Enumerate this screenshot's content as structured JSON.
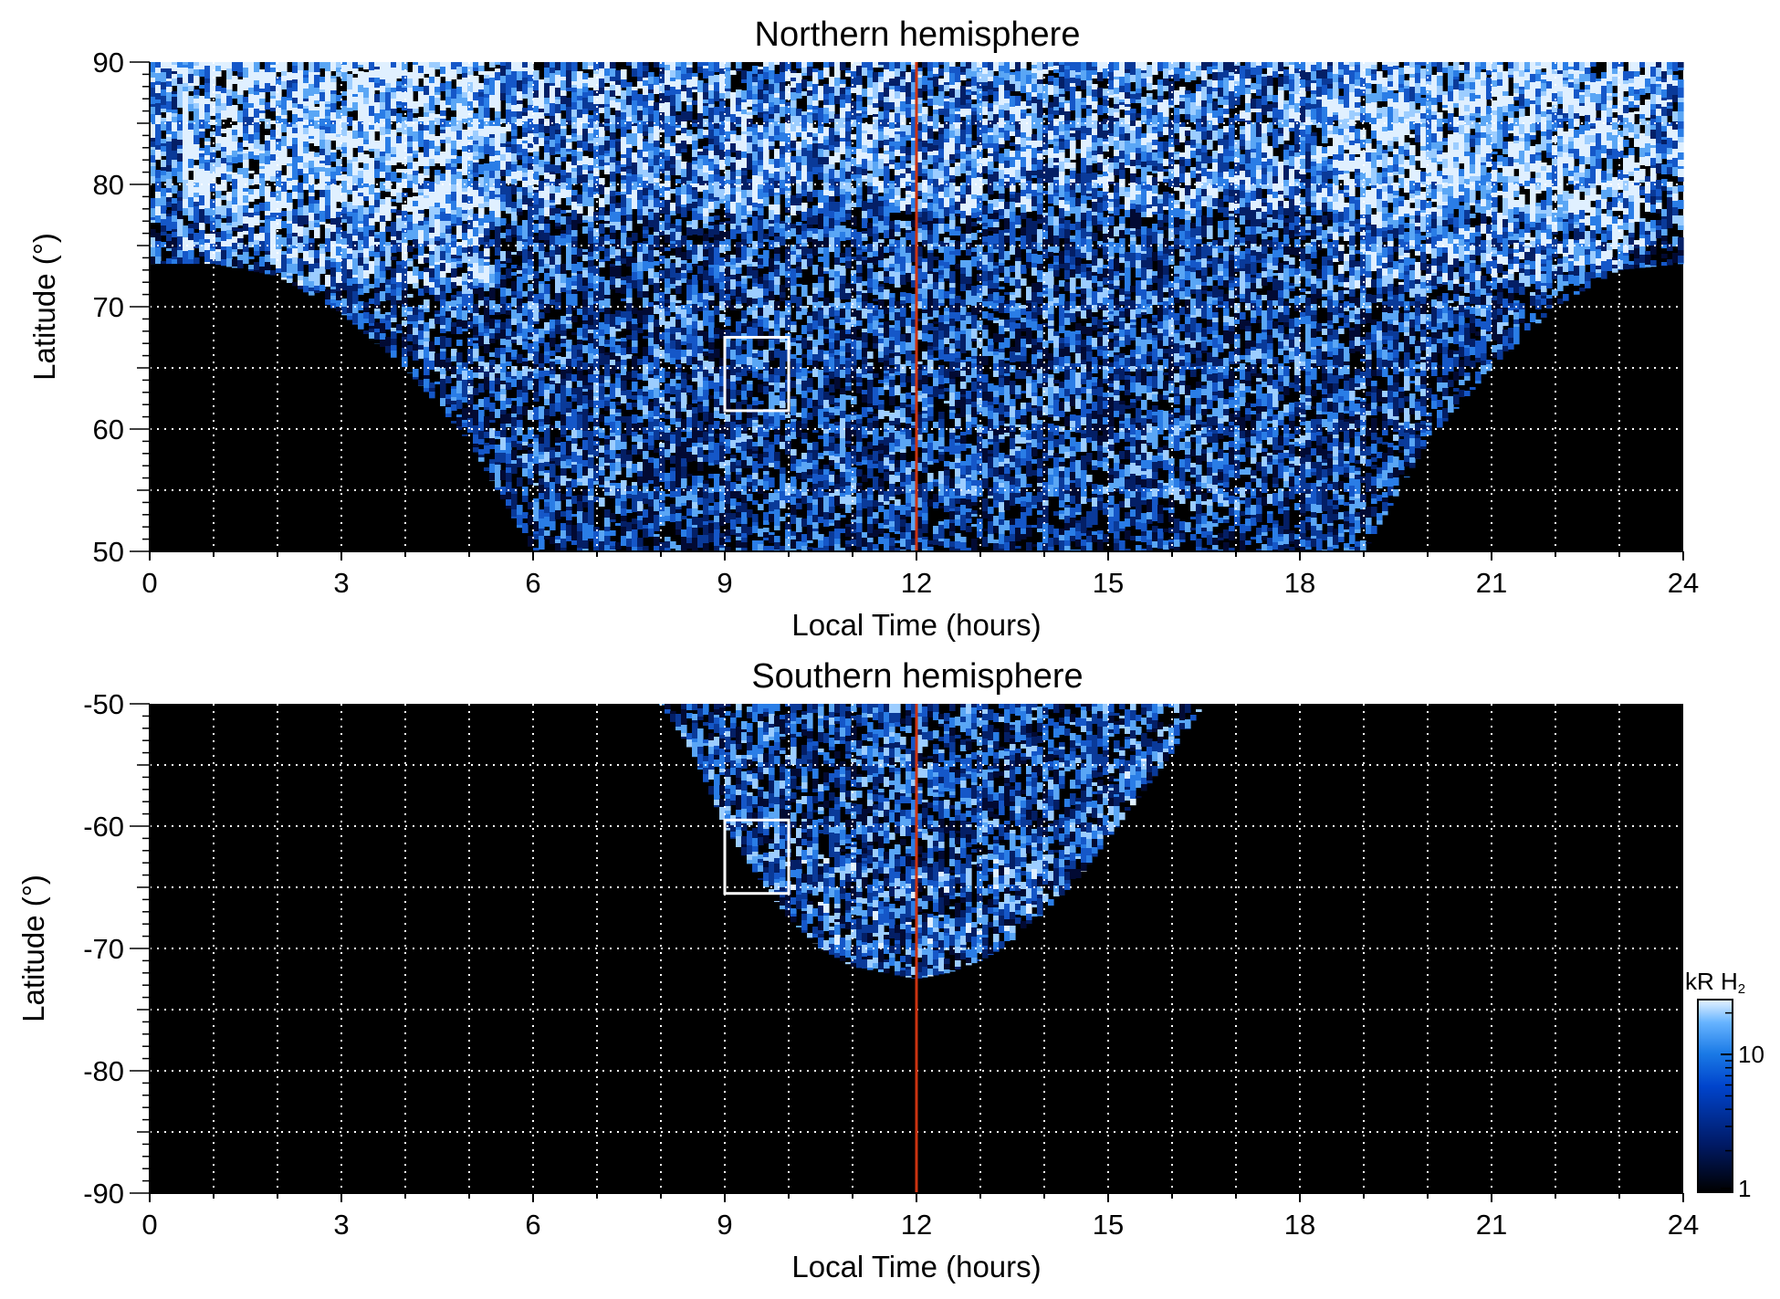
{
  "chart_data": [
    {
      "type": "heatmap",
      "title": "Northern hemisphere",
      "xlabel": "Local Time (hours)",
      "ylabel": "Latitude (°)",
      "xlim": [
        0,
        24
      ],
      "ylim": [
        50,
        90
      ],
      "xticks": [
        "0",
        "3",
        "6",
        "9",
        "12",
        "15",
        "18",
        "21",
        "24"
      ],
      "yticks": [
        "50",
        "60",
        "70",
        "80",
        "90"
      ],
      "grid": true,
      "reference_line": {
        "x": 12,
        "color": "#cc3311"
      },
      "highlight_box": {
        "x": [
          9,
          10
        ],
        "y": [
          61.5,
          67.5
        ],
        "color": "#ffffff"
      },
      "coverage_boundary": {
        "local_time": [
          0,
          1,
          2,
          3,
          4,
          5,
          6,
          7,
          8,
          9,
          10,
          11,
          12,
          13,
          14,
          15,
          16,
          17,
          18,
          19,
          20,
          21,
          22,
          23,
          24
        ],
        "min_latitude": [
          73.5,
          73.5,
          72.5,
          69.5,
          65,
          59,
          50,
          50,
          50,
          50,
          50,
          50,
          50,
          50,
          50,
          50,
          50,
          50,
          50,
          50,
          59,
          65,
          70,
          73,
          73.5
        ]
      }
    },
    {
      "type": "heatmap",
      "title": "Southern hemisphere",
      "xlabel": "Local Time (hours)",
      "ylabel": "Latitude (°)",
      "xlim": [
        0,
        24
      ],
      "ylim": [
        -90,
        -50
      ],
      "xticks": [
        "0",
        "3",
        "6",
        "9",
        "12",
        "15",
        "18",
        "21",
        "24"
      ],
      "yticks": [
        "-90",
        "-80",
        "-70",
        "-60",
        "-50"
      ],
      "grid": true,
      "reference_line": {
        "x": 12,
        "color": "#cc3311"
      },
      "highlight_box": {
        "x": [
          9,
          10
        ],
        "y": [
          -65.5,
          -59.5
        ],
        "color": "#ffffff"
      },
      "coverage_boundary": {
        "local_time": [
          8,
          8.5,
          9,
          9.5,
          10,
          10.5,
          11,
          11.5,
          12,
          12.5,
          13,
          13.5,
          14,
          14.5,
          15,
          15.5,
          16,
          16.5
        ],
        "min_latitude": [
          -50,
          -54,
          -60,
          -64,
          -67.5,
          -70,
          -71.5,
          -72,
          -72.5,
          -72,
          -71,
          -69.5,
          -67,
          -64.5,
          -61,
          -57.5,
          -54,
          -50
        ]
      }
    }
  ],
  "colorbar": {
    "label": "kR H",
    "label_sub": "2",
    "scale": "log",
    "range": [
      1,
      25
    ],
    "ticks": [
      "1",
      "10"
    ],
    "colors": [
      "#000000",
      "#001a66",
      "#0044cc",
      "#1a7ae6",
      "#66b3ff",
      "#e6f3ff"
    ]
  }
}
